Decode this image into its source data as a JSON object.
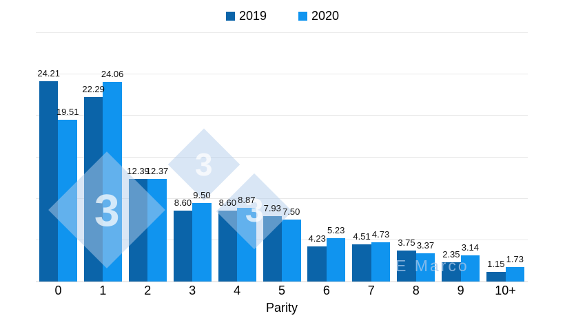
{
  "chart_data": {
    "type": "bar",
    "title": "",
    "xlabel": "Parity",
    "ylabel": "",
    "ylim": [
      0,
      30
    ],
    "gridline_step": 5,
    "grid": true,
    "legend_position": "top-center",
    "categories": [
      "0",
      "1",
      "2",
      "3",
      "4",
      "5",
      "6",
      "7",
      "8",
      "9",
      "10+"
    ],
    "series": [
      {
        "name": "2019",
        "color": "#0b64a9",
        "values": [
          24.21,
          22.29,
          12.39,
          8.6,
          8.6,
          7.93,
          4.23,
          4.51,
          3.75,
          2.35,
          1.15
        ],
        "labels": [
          "24.21",
          "22.29",
          "12.39",
          "8.60",
          "8.60",
          "7.93",
          "4.23",
          "4.51",
          "3.75",
          "2.35",
          "1.15"
        ]
      },
      {
        "name": "2020",
        "color": "#1094ef",
        "values": [
          19.51,
          24.06,
          12.37,
          9.5,
          8.87,
          7.5,
          5.23,
          4.73,
          3.37,
          3.14,
          1.73
        ],
        "labels": [
          "19.51",
          "24.06",
          "12.37",
          "9.50",
          "8.87",
          "7.50",
          "5.23",
          "4.73",
          "3.37",
          "3.14",
          "1.73"
        ]
      }
    ]
  },
  "watermark": {
    "logo_digits": [
      "3",
      "3",
      "3"
    ],
    "text": "E Marco"
  }
}
